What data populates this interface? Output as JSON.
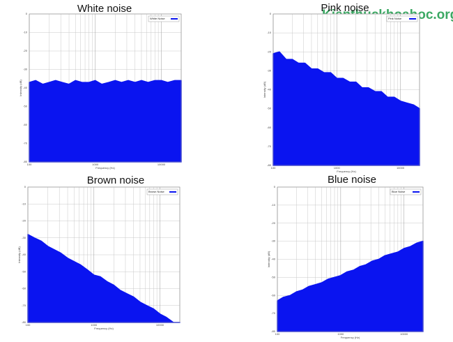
{
  "watermark": "Kienthuckhoahoc.org",
  "chart_data": [
    {
      "type": "area",
      "title": "White noise",
      "xlabel": "Frequency (Hz)",
      "ylabel": "Intensity (dB)",
      "log_x": true,
      "grid": true,
      "legend": "upper right",
      "x": [
        100,
        125,
        160,
        200,
        250,
        315,
        400,
        500,
        630,
        800,
        1000,
        1250,
        1600,
        2000,
        2500,
        3150,
        4000,
        5000,
        6300,
        8000,
        10000,
        12500,
        16000,
        20000
      ],
      "series": [
        {
          "name": "White Noise",
          "color": "#0a14f0",
          "values": [
            -37,
            -36,
            -38,
            -37,
            -36,
            -37,
            -38,
            -36,
            -37,
            -37,
            -36,
            -38,
            -37,
            -36,
            -37,
            -36,
            -37,
            -36,
            -37,
            -36,
            -36,
            -37,
            -36,
            -36
          ]
        }
      ],
      "xlim": [
        100,
        20000
      ],
      "ylim": [
        -80,
        0
      ],
      "xticks": [
        100,
        1000,
        10000
      ],
      "yticks": [
        0,
        -10,
        -20,
        -30,
        -40,
        -50,
        -60,
        -70,
        -80
      ]
    },
    {
      "type": "area",
      "title": "Pink noise",
      "xlabel": "Frequency (Hz)",
      "ylabel": "Intensity (dB)",
      "log_x": true,
      "grid": true,
      "legend": "upper right",
      "x": [
        100,
        125,
        160,
        200,
        250,
        315,
        400,
        500,
        630,
        800,
        1000,
        1250,
        1600,
        2000,
        2500,
        3150,
        4000,
        5000,
        6300,
        8000,
        10000,
        12500,
        16000,
        20000
      ],
      "series": [
        {
          "name": "Pink Noise",
          "color": "#0a14f0",
          "values": [
            -21,
            -20,
            -24,
            -24,
            -26,
            -26,
            -29,
            -29,
            -31,
            -31,
            -34,
            -34,
            -36,
            -36,
            -39,
            -39,
            -41,
            -41,
            -44,
            -44,
            -46,
            -47,
            -48,
            -50
          ]
        }
      ],
      "xlim": [
        100,
        20000
      ],
      "ylim": [
        -80,
        0
      ],
      "xticks": [
        100,
        1000,
        10000
      ],
      "yticks": [
        0,
        -10,
        -20,
        -30,
        -40,
        -50,
        -60,
        -70,
        -80
      ]
    },
    {
      "type": "area",
      "title": "Brown noise",
      "xlabel": "Frequency (Hz)",
      "ylabel": "Intensity (dB)",
      "log_x": true,
      "grid": true,
      "legend": "upper right",
      "x": [
        100,
        125,
        160,
        200,
        250,
        315,
        400,
        500,
        630,
        800,
        1000,
        1250,
        1600,
        2000,
        2500,
        3150,
        4000,
        5000,
        6300,
        8000,
        10000,
        12500,
        16000,
        20000
      ],
      "series": [
        {
          "name": "Brown Noise",
          "color": "#0a14f0",
          "values": [
            -28,
            -30,
            -32,
            -35,
            -37,
            -39,
            -42,
            -44,
            -46,
            -49,
            -52,
            -53,
            -56,
            -58,
            -61,
            -63,
            -65,
            -68,
            -70,
            -72,
            -75,
            -77,
            -80,
            -80
          ]
        }
      ],
      "xlim": [
        100,
        20000
      ],
      "ylim": [
        -80,
        0
      ],
      "xticks": [
        100,
        1000,
        10000
      ],
      "yticks": [
        0,
        -10,
        -20,
        -30,
        -40,
        -50,
        -60,
        -70,
        -80
      ]
    },
    {
      "type": "area",
      "title": "Blue noise",
      "xlabel": "Frequency (Hz)",
      "ylabel": "Intensity (dB)",
      "log_x": true,
      "grid": true,
      "legend": "upper right",
      "x": [
        100,
        125,
        160,
        200,
        250,
        315,
        400,
        500,
        630,
        800,
        1000,
        1250,
        1600,
        2000,
        2500,
        3150,
        4000,
        5000,
        6300,
        8000,
        10000,
        12500,
        16000,
        20000
      ],
      "series": [
        {
          "name": "Blue Noise",
          "color": "#0a14f0",
          "values": [
            -63,
            -61,
            -60,
            -58,
            -57,
            -55,
            -54,
            -53,
            -51,
            -50,
            -49,
            -47,
            -46,
            -44,
            -43,
            -41,
            -40,
            -38,
            -37,
            -36,
            -34,
            -33,
            -31,
            -30
          ]
        }
      ],
      "xlim": [
        100,
        20000
      ],
      "ylim": [
        -80,
        0
      ],
      "xticks": [
        100,
        1000,
        10000
      ],
      "yticks": [
        0,
        -10,
        -20,
        -30,
        -40,
        -50,
        -60,
        -70,
        -80
      ]
    }
  ]
}
